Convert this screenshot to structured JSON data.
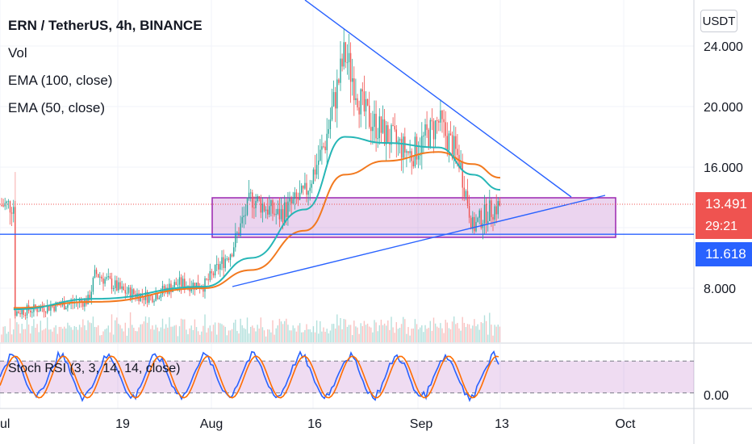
{
  "header": {
    "title": "ERN / TetherUS, 4h, BINANCE",
    "indicators": [
      "Vol",
      "EMA (100, close)",
      "EMA (50, close)"
    ]
  },
  "axis": {
    "currency_button": "USDT",
    "price_ticks": [
      "24.000",
      "20.000",
      "16.000",
      "8.000"
    ],
    "stoch_ticks": [
      "0.00"
    ],
    "time_ticks": [
      "ul",
      "19",
      "Aug",
      "16",
      "Sep",
      "13",
      "Oct"
    ]
  },
  "badges": {
    "last_price": "13.491",
    "countdown": "29:21",
    "hline_price": "11.618"
  },
  "stoch": {
    "label": "Stoch RSI (3, 3, 14, 14, close)"
  },
  "colors": {
    "up": "#26a69a",
    "down": "#ef5350",
    "ema50": "#26b6b6",
    "ema100": "#f2791e",
    "trend": "#2962ff",
    "box": "#9c27b0",
    "stoch_k": "#2962ff",
    "stoch_d": "#ff6d00"
  },
  "chart_data": {
    "type": "candlestick",
    "symbol": "ERN / TetherUS",
    "interval": "4h",
    "exchange": "BINANCE",
    "price_axis": [
      24.0,
      20.0,
      16.0,
      8.0
    ],
    "last_price": 13.491,
    "horizontal_line": 11.618,
    "close_path": [
      {
        "x": "Jul 3",
        "y": 6.4
      },
      {
        "x": "Jul 10",
        "y": 6.9
      },
      {
        "x": "Jul 14",
        "y": 7.2
      },
      {
        "x": "Jul 15",
        "y": 9.0
      },
      {
        "x": "Jul 19",
        "y": 7.8
      },
      {
        "x": "Jul 23",
        "y": 7.4
      },
      {
        "x": "Jul 27",
        "y": 8.3
      },
      {
        "x": "Jul 31",
        "y": 8.2
      },
      {
        "x": "Aug 4",
        "y": 10.5
      },
      {
        "x": "Aug 7",
        "y": 14.0
      },
      {
        "x": "Aug 11",
        "y": 12.8
      },
      {
        "x": "Aug 15",
        "y": 14.2
      },
      {
        "x": "Aug 18",
        "y": 17.5
      },
      {
        "x": "Aug 21",
        "y": 23.5
      },
      {
        "x": "Aug 24",
        "y": 19.5
      },
      {
        "x": "Aug 27",
        "y": 18.2
      },
      {
        "x": "Aug 31",
        "y": 16.8
      },
      {
        "x": "Sep 4",
        "y": 19.0
      },
      {
        "x": "Sep 7",
        "y": 16.5
      },
      {
        "x": "Sep 9",
        "y": 12.0
      },
      {
        "x": "Sep 11",
        "y": 13.0
      },
      {
        "x": "Sep 13",
        "y": 13.49
      }
    ],
    "ema50": [
      {
        "x": "Jul 3",
        "y": 6.6
      },
      {
        "x": "Jul 15",
        "y": 7.3
      },
      {
        "x": "Jul 31",
        "y": 8.1
      },
      {
        "x": "Aug 7",
        "y": 10.0
      },
      {
        "x": "Aug 15",
        "y": 13.2
      },
      {
        "x": "Aug 21",
        "y": 18.0
      },
      {
        "x": "Aug 27",
        "y": 17.6
      },
      {
        "x": "Sep 4",
        "y": 17.3
      },
      {
        "x": "Sep 9",
        "y": 15.5
      },
      {
        "x": "Sep 13",
        "y": 14.5
      }
    ],
    "ema100": [
      {
        "x": "Jul 3",
        "y": 6.7
      },
      {
        "x": "Jul 15",
        "y": 7.1
      },
      {
        "x": "Jul 31",
        "y": 8.0
      },
      {
        "x": "Aug 7",
        "y": 9.2
      },
      {
        "x": "Aug 15",
        "y": 11.8
      },
      {
        "x": "Aug 21",
        "y": 15.5
      },
      {
        "x": "Aug 27",
        "y": 16.4
      },
      {
        "x": "Sep 4",
        "y": 17.0
      },
      {
        "x": "Sep 9",
        "y": 16.2
      },
      {
        "x": "Sep 13",
        "y": 15.3
      }
    ],
    "stoch_rsi": {
      "upper": 80,
      "lower": 20
    }
  }
}
